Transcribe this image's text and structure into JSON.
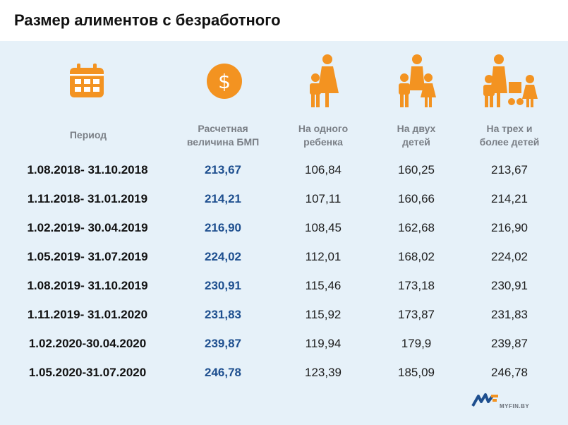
{
  "title": "Размер алиментов с безработного",
  "colors": {
    "accent": "#f39321",
    "bmp_text": "#1e4f8f",
    "panel": "#e6f1f9",
    "header_text": "#7a7f86"
  },
  "icons": [
    "calendar-icon",
    "dollar-coin-icon",
    "parent-one-child-icon",
    "parent-two-children-icon",
    "parent-three-children-icon"
  ],
  "headers": {
    "period": "Период",
    "bmp_line1": "Расчетная",
    "bmp_line2": "величина БМП",
    "one_line1": "На одного",
    "one_line2": "ребенка",
    "two_line1": "На двух",
    "two_line2": "детей",
    "three_line1": "На трех и",
    "three_line2": "более детей"
  },
  "rows": [
    {
      "period": "1.08.2018- 31.10.2018",
      "bmp": "213,67",
      "one": "106,84",
      "two": "160,25",
      "three": "213,67"
    },
    {
      "period": "1.11.2018- 31.01.2019",
      "bmp": "214,21",
      "one": "107,11",
      "two": "160,66",
      "three": "214,21"
    },
    {
      "period": "1.02.2019- 30.04.2019",
      "bmp": "216,90",
      "one": "108,45",
      "two": "162,68",
      "three": "216,90"
    },
    {
      "period": "1.05.2019- 31.07.2019",
      "bmp": "224,02",
      "one": "112,01",
      "two": "168,02",
      "three": "224,02"
    },
    {
      "period": "1.08.2019- 31.10.2019",
      "bmp": "230,91",
      "one": "115,46",
      "two": "173,18",
      "three": "230,91"
    },
    {
      "period": "1.11.2019- 31.01.2020",
      "bmp": "231,83",
      "one": "115,92",
      "two": "173,87",
      "three": "231,83"
    },
    {
      "period": "1.02.2020-30.04.2020",
      "bmp": "239,87",
      "one": "119,94",
      "two": "179,9",
      "three": "239,87"
    },
    {
      "period": "1.05.2020-31.07.2020",
      "bmp": "246,78",
      "one": "123,39",
      "two": "185,09",
      "three": "246,78"
    }
  ],
  "logo": {
    "text": "MYFIN.BY"
  }
}
